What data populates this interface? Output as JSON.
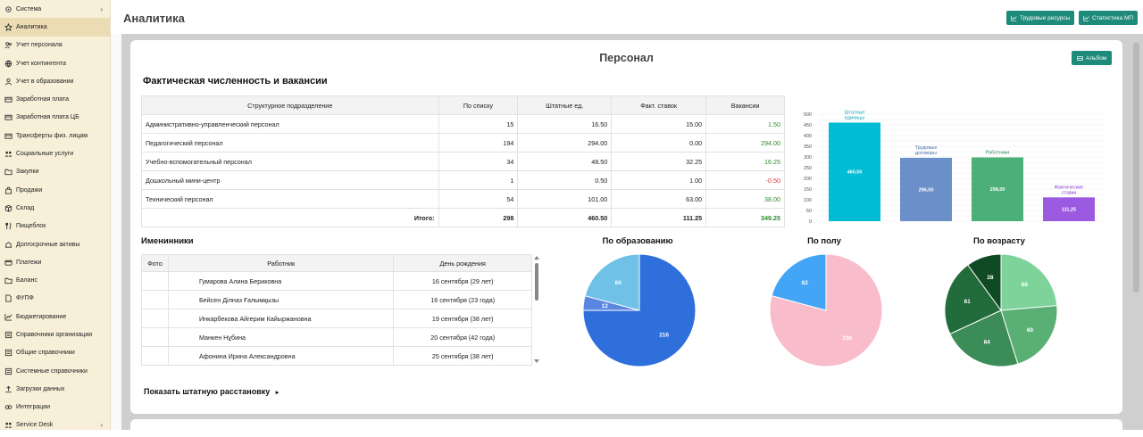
{
  "sidebar": {
    "items": [
      {
        "label": "Система",
        "icon": "gear-icon",
        "chevron": "›"
      },
      {
        "label": "Аналитика",
        "icon": "star-icon",
        "active": true
      },
      {
        "label": "Учет персонала",
        "icon": "users-icon"
      },
      {
        "label": "Учет контингента",
        "icon": "globe-icon"
      },
      {
        "label": "Учет в образовании",
        "icon": "user-icon"
      },
      {
        "label": "Заработная плата",
        "icon": "wallet-icon"
      },
      {
        "label": "Заработная плата ЦБ",
        "icon": "wallet-icon"
      },
      {
        "label": "Трансферты физ. лицам",
        "icon": "wallet-icon"
      },
      {
        "label": "Социальные услуги",
        "icon": "people-icon"
      },
      {
        "label": "Закупки",
        "icon": "folder-icon"
      },
      {
        "label": "Продажи",
        "icon": "bag-icon"
      },
      {
        "label": "Склад",
        "icon": "box-icon"
      },
      {
        "label": "Пищеблок",
        "icon": "fork-knife-icon"
      },
      {
        "label": "Долгосрочные активы",
        "icon": "asset-icon"
      },
      {
        "label": "Платежи",
        "icon": "card-icon"
      },
      {
        "label": "Баланс",
        "icon": "folder-icon"
      },
      {
        "label": "ФУПФ",
        "icon": "document-icon"
      },
      {
        "label": "Бюджетирование",
        "icon": "chart-icon"
      },
      {
        "label": "Справочники организации",
        "icon": "list-icon"
      },
      {
        "label": "Общие справочники",
        "icon": "list-icon"
      },
      {
        "label": "Системные справочники",
        "icon": "list-icon"
      },
      {
        "label": "Загрузки данных",
        "icon": "upload-icon"
      },
      {
        "label": "Интеграции",
        "icon": "link-icon"
      },
      {
        "label": "Service Desk",
        "icon": "people-icon",
        "chevron": "›"
      }
    ]
  },
  "header": {
    "title": "Аналитика",
    "buttons": [
      {
        "label": "Трудовые ресурсы"
      },
      {
        "label": "Статистика МП"
      }
    ]
  },
  "card": {
    "title": "Персонал",
    "album_label": "Альбом",
    "staff_section_title": "Фактическая численность и вакансии",
    "staff_table": {
      "columns": [
        "Структурное подразделение",
        "По списку",
        "Штатные ед.",
        "Факт. ставок",
        "Вакансии"
      ],
      "rows": [
        [
          "Административно-управленческий персонал",
          "15",
          "16.50",
          "15.00",
          "1.50"
        ],
        [
          "Педагогический персонал",
          "194",
          "294.00",
          "0.00",
          "294.00"
        ],
        [
          "Учебно-вспомогательный персонал",
          "34",
          "48.50",
          "32.25",
          "16.25"
        ],
        [
          "Дошкольный мини-центр",
          "1",
          "0.50",
          "1.00",
          "-0.50"
        ],
        [
          "Технический персонал",
          "54",
          "101.00",
          "63.00",
          "38.00"
        ]
      ],
      "total": [
        "Итого:",
        "298",
        "460.50",
        "111.25",
        "349.25"
      ]
    },
    "birthday_section_title": "Именинники",
    "birthday_table": {
      "columns": [
        "Фото",
        "Работник",
        "День рождения"
      ],
      "rows": [
        [
          "Гумарова Алина Бериковна",
          "16 сентября (29 лет)"
        ],
        [
          "Бейсен Ділназ Ғалымқызы",
          "16 сентября (23 года)"
        ],
        [
          "Инкарбекова Айгерим Кайыржановна",
          "19 сентября (38 лет)"
        ],
        [
          "Манкен Нұбина",
          "20 сентября (42 года)"
        ],
        [
          "Афонина Ирина Александровна",
          "25 сентября (38 лет)"
        ]
      ]
    },
    "show_link": "Показать штатную расстановку",
    "show_link_arrow": "▸"
  },
  "colors": {
    "accent": "#1e8a7a",
    "positive": "#2e8b2e",
    "negative": "#dd3333"
  },
  "chart_data": [
    {
      "type": "bar",
      "categories": [
        "Штатные единицы",
        "Трудовые договоры",
        "Работники",
        "Фактические ставки"
      ],
      "values": [
        460.5,
        296,
        298,
        111.25
      ],
      "value_labels": [
        "460,50",
        "296,00",
        "298,00",
        "111,25"
      ],
      "colors": [
        "#00bcd4",
        "#6b8fc9",
        "#4caf77",
        "#9c5ae0"
      ],
      "ylim": [
        0,
        500
      ],
      "yticks": [
        0,
        25,
        50,
        75,
        100,
        125,
        150,
        175,
        200,
        225,
        250,
        275,
        300,
        325,
        350,
        375,
        400,
        425,
        450,
        475,
        500
      ],
      "grid": true
    },
    {
      "type": "pie",
      "title": "По образованию",
      "values": [
        216,
        12,
        60
      ],
      "colors": [
        "#2f6fdc",
        "#5b86e0",
        "#6fc1e8"
      ]
    },
    {
      "type": "pie",
      "title": "По полу",
      "values": [
        236,
        62
      ],
      "colors": [
        "#f8bccb",
        "#42a5f5"
      ]
    },
    {
      "type": "pie",
      "title": "По возрасту",
      "values": [
        66,
        60,
        64,
        61,
        28
      ],
      "colors": [
        "#7dd39a",
        "#5aaf74",
        "#3c8c58",
        "#226b3a",
        "#0f4a25"
      ]
    }
  ]
}
